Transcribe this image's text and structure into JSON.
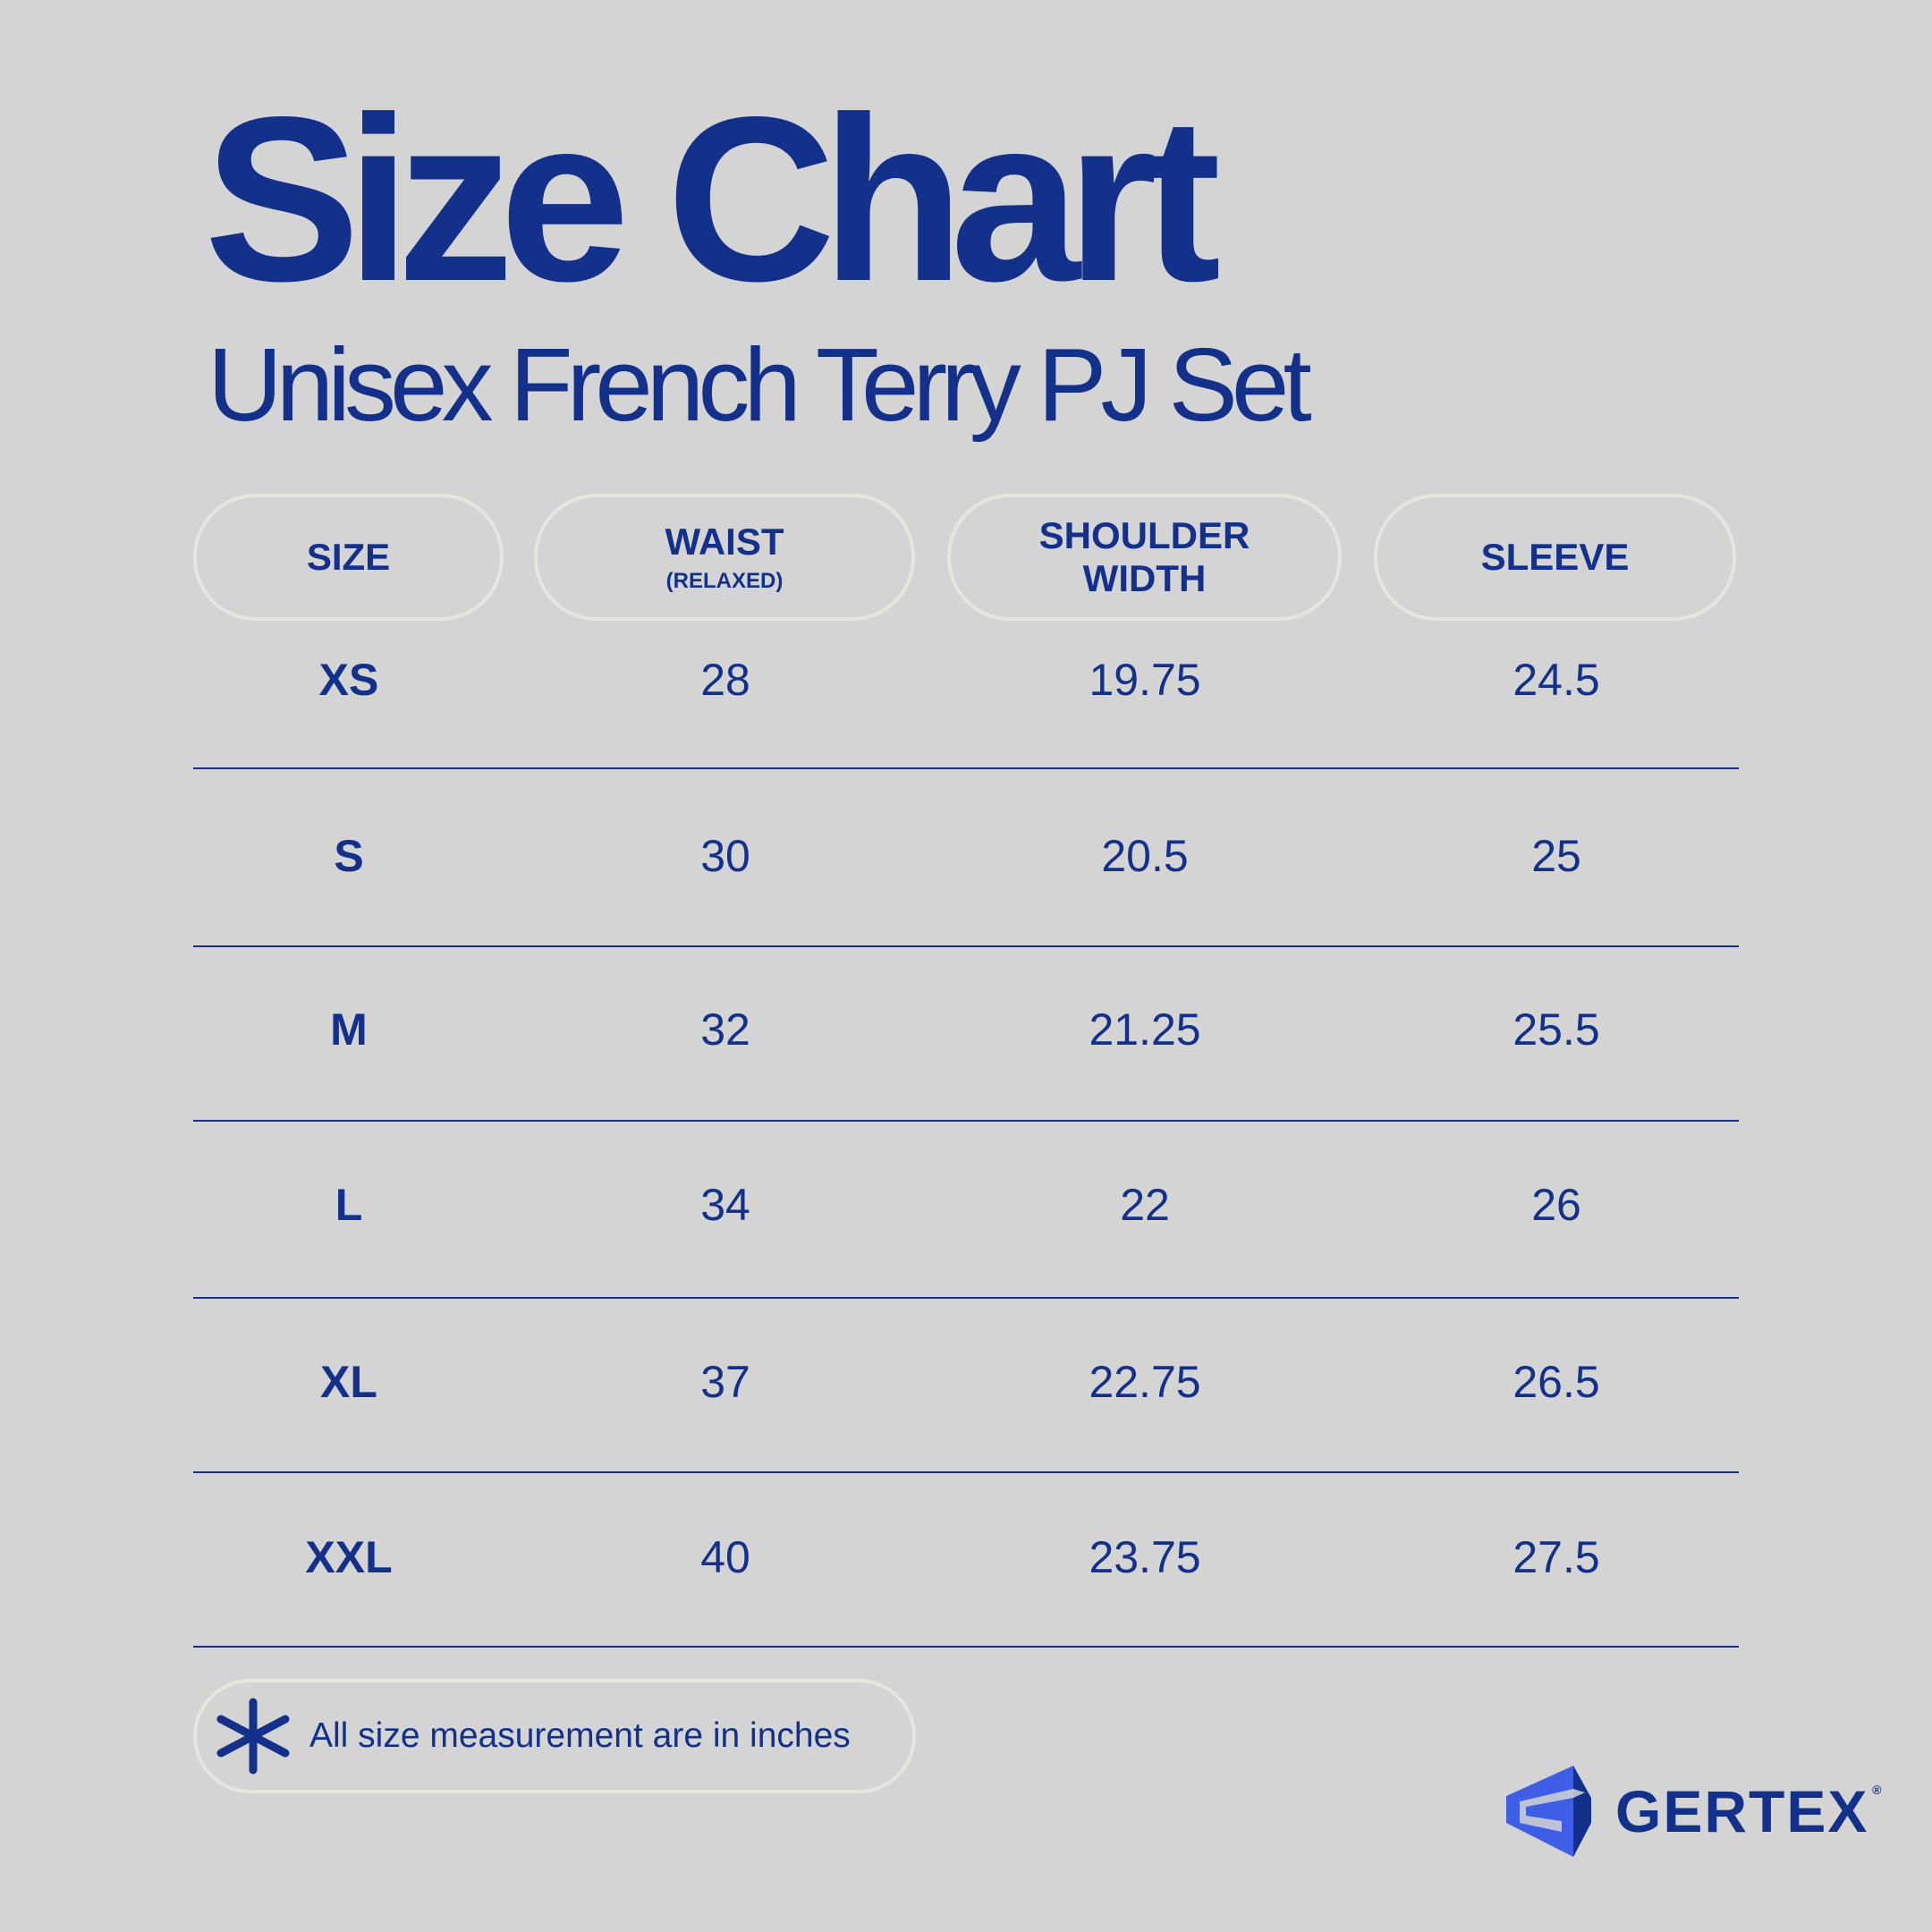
{
  "title": "Size Chart",
  "subtitle": "Unisex French Terry PJ Set",
  "headers": [
    {
      "label": "SIZE",
      "sub": ""
    },
    {
      "label": "WAIST",
      "sub": "(RELAXED)"
    },
    {
      "label": "SHOULDER WIDTH",
      "sub": ""
    },
    {
      "label": "SLEEVE",
      "sub": ""
    }
  ],
  "rows": [
    [
      "XS",
      "28",
      "19.75",
      "24.5"
    ],
    [
      "S",
      "30",
      "20.5",
      "25"
    ],
    [
      "M",
      "32",
      "21.25",
      "25.5"
    ],
    [
      "L",
      "34",
      "22",
      "26"
    ],
    [
      "XL",
      "37",
      "22.75",
      "26.5"
    ],
    [
      "XXL",
      "40",
      "23.75",
      "27.5"
    ]
  ],
  "footnote": {
    "icon": "asterisk-icon",
    "text": "All size measurement are in inches"
  },
  "logo": {
    "text": "GERTEX",
    "reg": "®"
  },
  "colors": {
    "background": "#d4d4d4",
    "navy": "#13318a",
    "logo_blue": "#3f5ee8",
    "pill_border": "#e6e6df"
  }
}
